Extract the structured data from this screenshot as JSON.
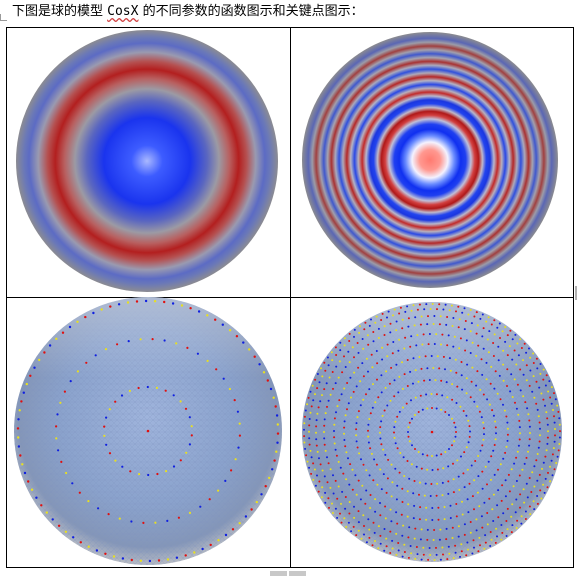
{
  "document": {
    "caption_before": "下图是球的模型 ",
    "caption_function": "CosX",
    "caption_after": " 的不同参数的函数图示和关键点图示："
  },
  "figure": {
    "panels": [
      {
        "kind": "function-plot",
        "description_icon": "cos-low-frequency-sphere"
      },
      {
        "kind": "function-plot",
        "description_icon": "cos-high-frequency-sphere"
      },
      {
        "kind": "keypoint-plot",
        "description_icon": "keypoints-low-frequency-sphere"
      },
      {
        "kind": "keypoint-plot",
        "description_icon": "keypoints-high-frequency-sphere"
      }
    ],
    "colors": {
      "red": "#b01e1e",
      "blue": "#1a3ae6",
      "gray": "#8a8f99",
      "mesh": "#8fa7cf",
      "point_red": "#e01010",
      "point_blue": "#1020e0",
      "point_yellow": "#e8e020"
    }
  }
}
